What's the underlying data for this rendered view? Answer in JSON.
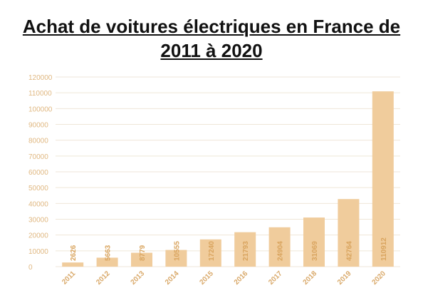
{
  "chart_data": {
    "type": "bar",
    "title_lines": [
      "Achat de voitures électriques en France de",
      "2011 à 2020"
    ],
    "categories": [
      "2011",
      "2012",
      "2013",
      "2014",
      "2015",
      "2016",
      "2017",
      "2018",
      "2019",
      "2020"
    ],
    "values": [
      2626,
      5663,
      8779,
      10555,
      17240,
      21793,
      24904,
      31069,
      42764,
      110912
    ],
    "data_labels": [
      "2626",
      "5663",
      "8779",
      "10555",
      "17240",
      "21793",
      "24904",
      "31069",
      "42764",
      "110912"
    ],
    "ylim": [
      0,
      120000
    ],
    "yticks": [
      "0",
      "10000",
      "20000",
      "30000",
      "40000",
      "50000",
      "60000",
      "70000",
      "80000",
      "90000",
      "100000",
      "110000",
      "120000"
    ],
    "grid": true,
    "colors": {
      "bar": "#f0cc9c",
      "grid": "#efe6d8",
      "label": "#d9a45e",
      "tick": "#e0b882"
    }
  }
}
